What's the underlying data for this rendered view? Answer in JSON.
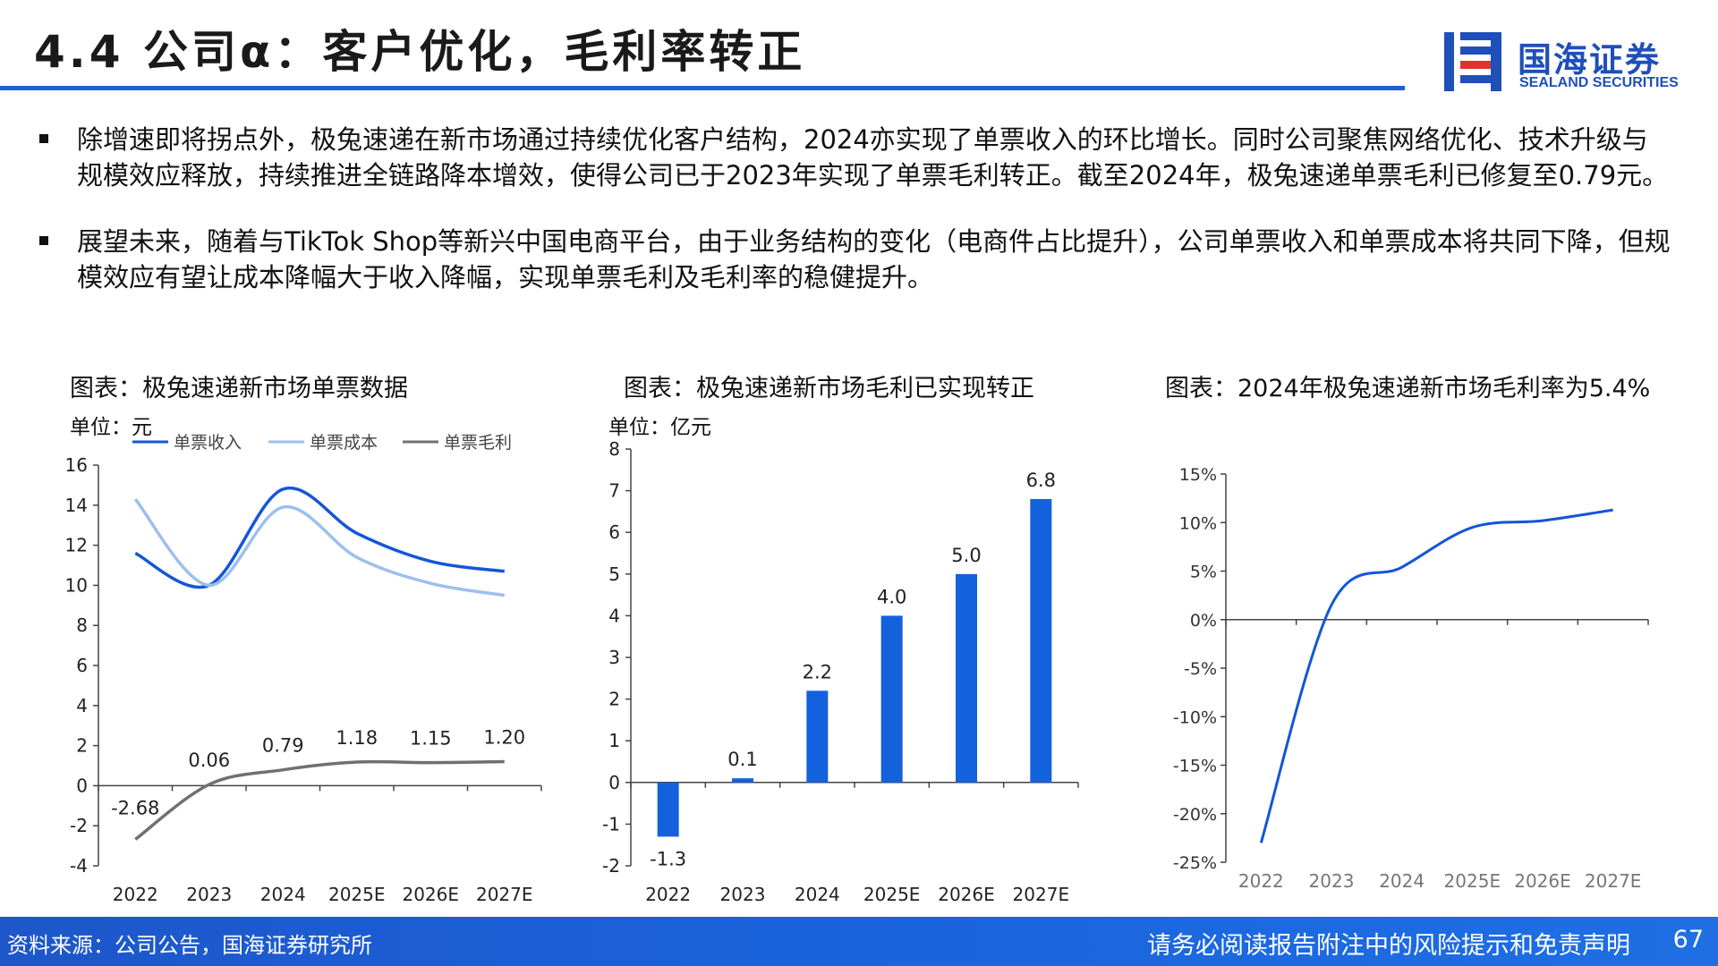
{
  "header": {
    "title": "4.4 公司α：客户优化，毛利率转正",
    "logo_cn": "国海证券",
    "logo_en": "SEALAND SECURITIES",
    "brand_color": "#1f5fd6",
    "logo_icon": "sealand-logo-icon"
  },
  "bullets": [
    "除增速即将拐点外，极兔速递在新市场通过持续优化客户结构，2024亦实现了单票收入的环比增长。同时公司聚焦网络优化、技术升级与规模效应释放，持续推进全链路降本增效，使得公司已于2023年实现了单票毛利转正。截至2024年，极兔速递单票毛利已修复至0.79元。",
    "展望未来，随着与TikTok Shop等新兴中国电商平台，由于业务结构的变化（电商件占比提升），公司单票收入和单票成本将共同下降，但规模效应有望让成本降幅大于收入降幅，实现单票毛利及毛利率的稳健提升。"
  ],
  "chart_data": [
    {
      "type": "line",
      "title": "图表：极兔速递新市场单票数据",
      "unit": "单位：元",
      "categories": [
        "2022",
        "2023",
        "2024",
        "2025E",
        "2026E",
        "2027E"
      ],
      "ylim": [
        -4,
        16
      ],
      "yticks": [
        "-4",
        "-2",
        "0",
        "2",
        "4",
        "6",
        "8",
        "10",
        "12",
        "14",
        "16"
      ],
      "legend_position": "top",
      "series": [
        {
          "name": "单票收入",
          "values": [
            11.6,
            10.0,
            14.8,
            12.6,
            11.2,
            10.7
          ],
          "color": "#1455d9"
        },
        {
          "name": "单票成本",
          "values": [
            14.3,
            10.0,
            13.9,
            11.4,
            10.1,
            9.5
          ],
          "color": "#9cc0ec"
        },
        {
          "name": "单票毛利",
          "values": [
            -2.68,
            0.06,
            0.79,
            1.18,
            1.15,
            1.2
          ],
          "labels": [
            "-2.68",
            "0.06",
            "0.79",
            "1.18",
            "1.15",
            "1.20"
          ],
          "color": "#707070"
        }
      ]
    },
    {
      "type": "bar",
      "title": "图表：极兔速递新市场毛利已实现转正",
      "unit": "单位：亿元",
      "categories": [
        "2022",
        "2023",
        "2024",
        "2025E",
        "2026E",
        "2027E"
      ],
      "values": [
        -1.3,
        0.1,
        2.2,
        4.0,
        5.0,
        6.8
      ],
      "labels": [
        "-1.3",
        "0.1",
        "2.2",
        "4.0",
        "5.0",
        "6.8"
      ],
      "ylim": [
        -2,
        8
      ],
      "yticks": [
        "-2",
        "-1",
        "0",
        "1",
        "2",
        "3",
        "4",
        "5",
        "6",
        "7",
        "8"
      ],
      "color": "#1461dd"
    },
    {
      "type": "line",
      "title": "图表：2024年极兔速递新市场毛利率为5.4%",
      "categories": [
        "2022",
        "2023",
        "2024",
        "2025E",
        "2026E",
        "2027E"
      ],
      "ylim": [
        -25,
        15
      ],
      "yticks": [
        "-25%",
        "-20%",
        "-15%",
        "-10%",
        "-5%",
        "0%",
        "5%",
        "10%",
        "15%"
      ],
      "series": [
        {
          "values": [
            -23.0,
            1.5,
            5.4,
            9.5,
            10.2,
            11.3
          ],
          "color": "#1455d9"
        }
      ]
    }
  ],
  "footer": {
    "source": "资料来源：公司公告，国海证券研究所",
    "disclaimer": "请务必阅读报告附注中的风险提示和免责声明",
    "page": "67"
  }
}
